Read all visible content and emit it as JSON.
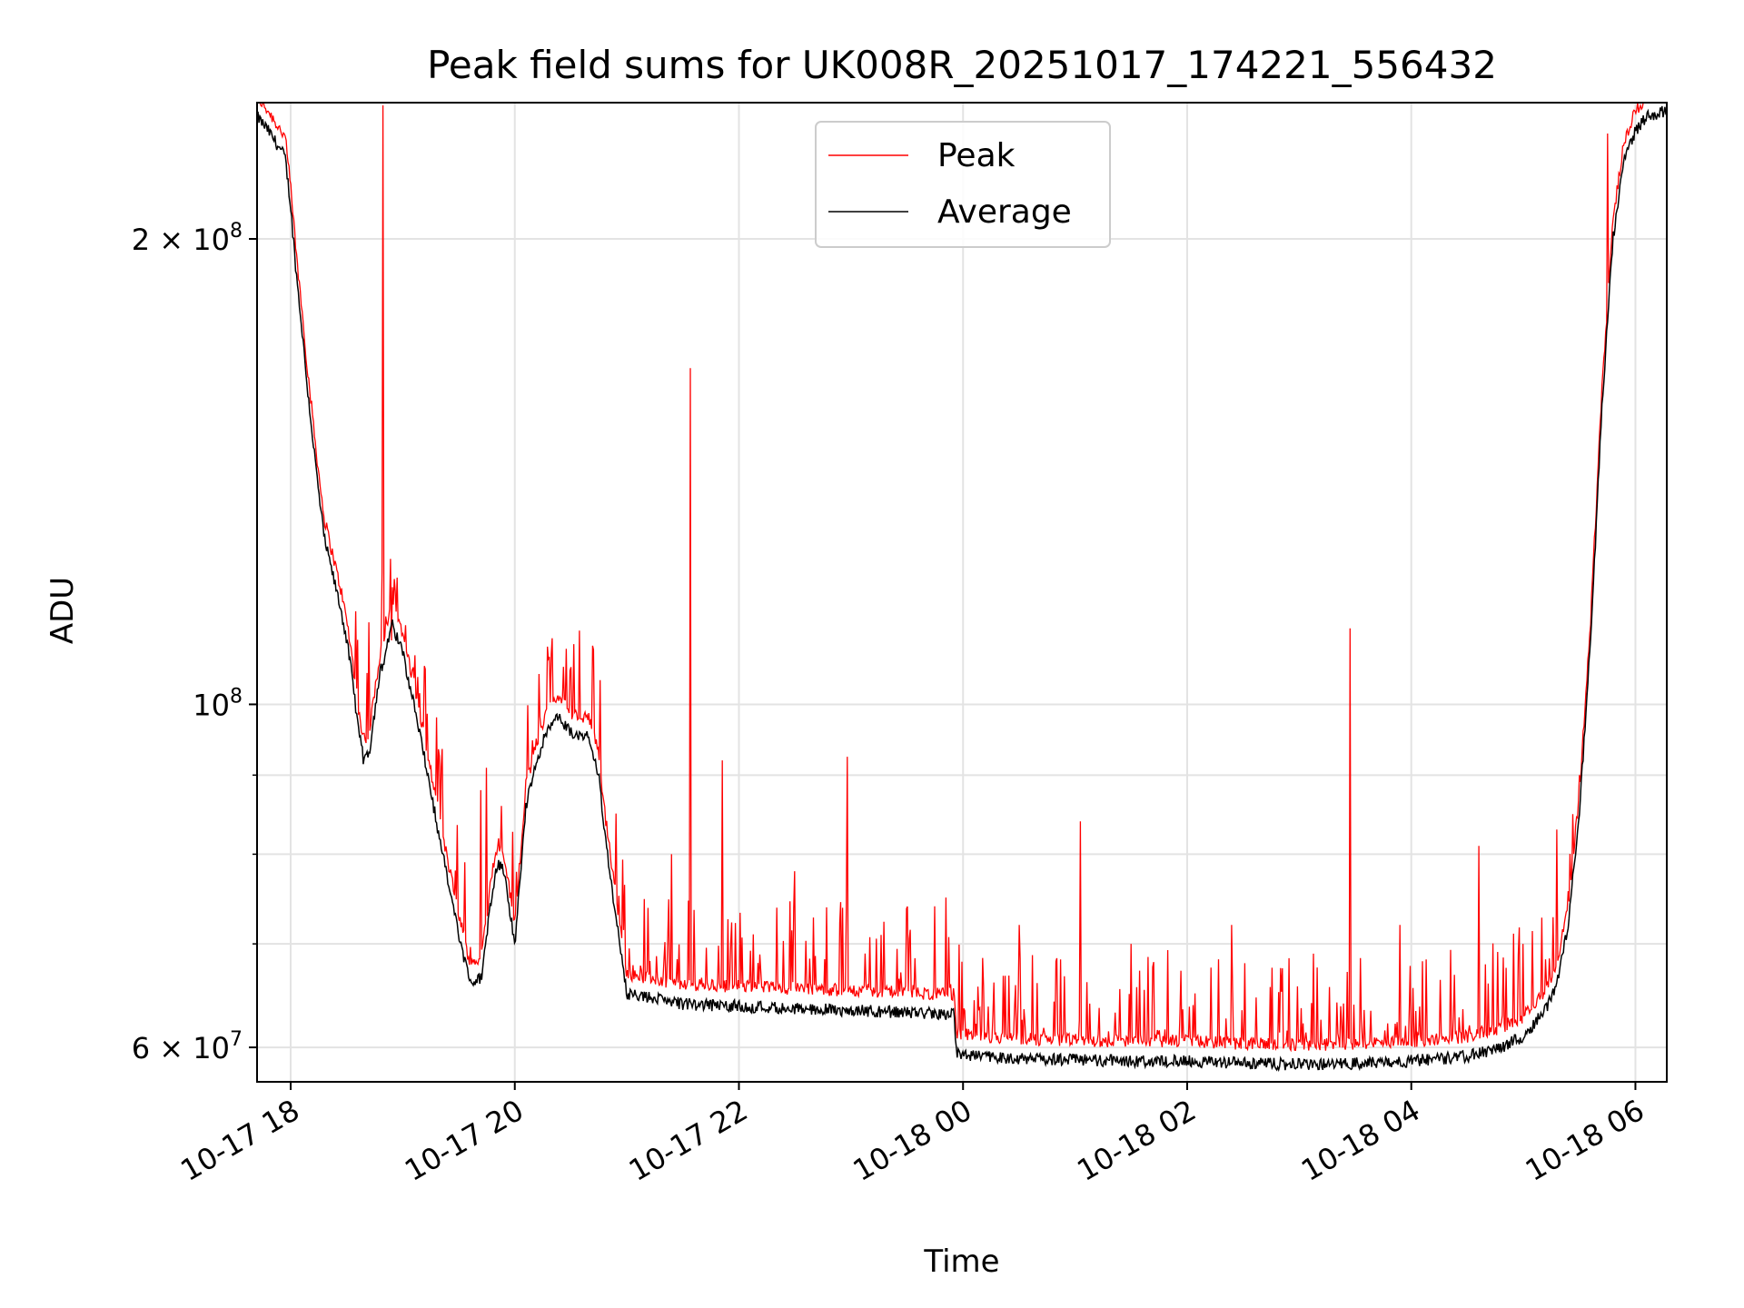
{
  "chart_data": {
    "type": "line",
    "title": "Peak field sums for UK008R_20251017_174221_556432",
    "xlabel": "Time",
    "ylabel": "ADU",
    "y_scale": "log",
    "ylim": [
      57000000,
      245000000
    ],
    "xlim_hours": [
      -0.3,
      12.28
    ],
    "grid": true,
    "legend_position": "upper center",
    "x_ticks": [
      {
        "hour": 0,
        "label": "10-17 18"
      },
      {
        "hour": 2,
        "label": "10-17 20"
      },
      {
        "hour": 4,
        "label": "10-17 22"
      },
      {
        "hour": 6,
        "label": "10-18 00"
      },
      {
        "hour": 8,
        "label": "10-18 02"
      },
      {
        "hour": 10,
        "label": "10-18 04"
      },
      {
        "hour": 12,
        "label": "10-18 06"
      }
    ],
    "y_ticks": [
      {
        "value": 200000000,
        "base": "2 × 10",
        "exp": "8"
      },
      {
        "value": 100000000,
        "base": "10",
        "exp": "8"
      },
      {
        "value": 60000000,
        "base": "6 × 10",
        "exp": "7"
      }
    ],
    "y_minor_ticks": [
      70000000,
      80000000,
      90000000
    ],
    "average_series": {
      "name": "Average",
      "color": "#000000",
      "hours": [
        -0.3,
        -0.2,
        -0.05,
        0.0,
        0.05,
        0.1,
        0.15,
        0.2,
        0.25,
        0.3,
        0.45,
        0.5,
        0.55,
        0.6,
        0.65,
        0.7,
        0.75,
        0.8,
        0.85,
        0.9,
        1.0,
        1.1,
        1.2,
        1.3,
        1.4,
        1.5,
        1.6,
        1.7,
        1.75,
        1.8,
        1.85,
        1.9,
        2.0,
        2.1,
        2.2,
        2.3,
        2.4,
        2.5,
        2.6,
        2.65,
        2.7,
        2.75,
        2.8,
        2.9,
        3.0,
        3.5,
        4.0,
        4.5,
        5.0,
        5.5,
        5.92,
        5.94,
        6.1,
        6.5,
        7.0,
        7.5,
        8.0,
        8.5,
        9.0,
        9.3,
        9.5,
        10.0,
        10.5,
        10.8,
        11.0,
        11.2,
        11.3,
        11.4,
        11.5,
        11.6,
        11.7,
        11.8,
        11.9,
        12.0,
        12.1,
        12.28
      ],
      "values": [
        240000000,
        235000000,
        226000000,
        210000000,
        190000000,
        175000000,
        160000000,
        148000000,
        137000000,
        128000000,
        115000000,
        110000000,
        104000000,
        97000000,
        92000000,
        93000000,
        99000000,
        105000000,
        108000000,
        113000000,
        108000000,
        100000000,
        92000000,
        84000000,
        77000000,
        71000000,
        66000000,
        66500000,
        71000000,
        76000000,
        79000000,
        78000000,
        70000000,
        86000000,
        92000000,
        97000000,
        98000000,
        96000000,
        95000000,
        95500000,
        93000000,
        90000000,
        83000000,
        73000000,
        65000000,
        64000000,
        63800000,
        63600000,
        63400000,
        63200000,
        63000000,
        59500000,
        59200000,
        59000000,
        58900000,
        58800000,
        58800000,
        58600000,
        58500000,
        58500000,
        58600000,
        58800000,
        59200000,
        60000000,
        61000000,
        63500000,
        66000000,
        72000000,
        85000000,
        110000000,
        155000000,
        200000000,
        225000000,
        235000000,
        240000000,
        242000000
      ]
    },
    "peak_series": {
      "name": "Peak",
      "color": "#ff0000",
      "offset_ratio": 1.02,
      "spikes": [
        {
          "hour": 0.82,
          "value": 244000000
        },
        {
          "hour": 0.7,
          "value": 113000000
        },
        {
          "hour": 0.85,
          "value": 114000000
        },
        {
          "hour": 0.9,
          "value": 110000000
        },
        {
          "hour": 1.1,
          "value": 104000000
        },
        {
          "hour": 1.7,
          "value": 88000000
        },
        {
          "hour": 1.75,
          "value": 91000000
        },
        {
          "hour": 2.3,
          "value": 107000000
        },
        {
          "hour": 2.9,
          "value": 85000000
        },
        {
          "hour": 3.4,
          "value": 80000000
        },
        {
          "hour": 3.57,
          "value": 165000000
        },
        {
          "hour": 3.85,
          "value": 92000000
        },
        {
          "hour": 4.5,
          "value": 78000000
        },
        {
          "hour": 4.97,
          "value": 92500000
        },
        {
          "hour": 5.5,
          "value": 74000000
        },
        {
          "hour": 5.85,
          "value": 75000000
        },
        {
          "hour": 6.5,
          "value": 72000000
        },
        {
          "hour": 7.05,
          "value": 84000000
        },
        {
          "hour": 7.5,
          "value": 70000000
        },
        {
          "hour": 8.4,
          "value": 72000000
        },
        {
          "hour": 8.85,
          "value": 67500000
        },
        {
          "hour": 9.45,
          "value": 112000000
        },
        {
          "hour": 9.9,
          "value": 72000000
        },
        {
          "hour": 10.6,
          "value": 81000000
        },
        {
          "hour": 11.0,
          "value": 70000000
        },
        {
          "hour": 11.3,
          "value": 83000000
        },
        {
          "hour": 11.5,
          "value": 90000000
        },
        {
          "hour": 11.75,
          "value": 234000000
        }
      ]
    },
    "legend": [
      {
        "label": "Peak",
        "color": "#ff0000"
      },
      {
        "label": "Average",
        "color": "#000000"
      }
    ]
  }
}
